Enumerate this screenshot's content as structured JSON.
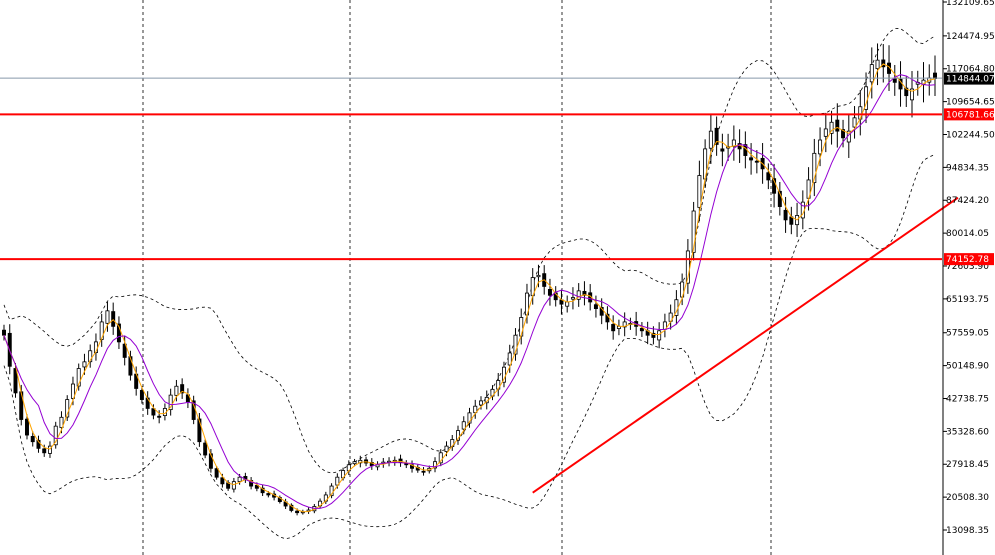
{
  "chart_data": {
    "type": "candlestick",
    "title": "",
    "xlabel": "",
    "ylabel": "",
    "ylim": [
      10000,
      135000
    ],
    "y_scale": "linear",
    "y_tick_labels": [
      "13098.35",
      "20508.30",
      "27918.45",
      "35328.60",
      "42738.75",
      "50148.90",
      "57559.05",
      "65193.75",
      "72603.90",
      "80014.05",
      "87424.20",
      "94834.35",
      "102244.50",
      "109654.65",
      "117064.80",
      "124474.95",
      "132109.65"
    ],
    "current_price": {
      "label": "114844.07",
      "value": 114844.07,
      "color": "#000000"
    },
    "horizontal_levels": [
      {
        "label": "106781.66",
        "value": 106781.66,
        "color": "#ff0000"
      },
      {
        "label": "74152.78",
        "value": 74152.78,
        "color": "#ff0000"
      }
    ],
    "trendline": {
      "color": "#ff0000",
      "from": [
        0,
        20000
      ],
      "to": [
        215,
        88000
      ]
    },
    "vertical_separators": 4,
    "grid": false,
    "series_colors": {
      "candles": "#000000",
      "fast_ma": "#ffa500",
      "slow_ma": "#9400d3",
      "bollinger": "#000000"
    },
    "closes": [
      57000,
      50000,
      44000,
      38000,
      34500,
      33000,
      31500,
      30500,
      32000,
      36500,
      38500,
      42500,
      46000,
      49500,
      51000,
      53500,
      55500,
      60000,
      62500,
      59000,
      55500,
      52000,
      48000,
      45000,
      42500,
      40500,
      39000,
      38500,
      40500,
      43500,
      45500,
      44000,
      42000,
      38000,
      33000,
      30000,
      27000,
      25000,
      23500,
      22500,
      24000,
      25000,
      24500,
      23000,
      22500,
      21500,
      21000,
      20500,
      19500,
      18500,
      17500,
      17000,
      17200,
      17600,
      18400,
      19600,
      21000,
      23000,
      25000,
      26500,
      27800,
      28500,
      28800,
      28200,
      27600,
      27800,
      28400,
      28600,
      28800,
      28300,
      27800,
      27000,
      26600,
      26300,
      27000,
      28500,
      30500,
      32000,
      33500,
      35500,
      37500,
      39500,
      41000,
      42200,
      43000,
      44800,
      46800,
      49800,
      53000,
      57000,
      61000,
      66500,
      70000,
      70500,
      68000,
      66000,
      65000,
      64000,
      64500,
      65500,
      67000,
      66000,
      64500,
      63000,
      61500,
      60000,
      58000,
      59000,
      60000,
      59500,
      59000,
      58000,
      57000,
      56500,
      58000,
      60000,
      62000,
      65000,
      69000,
      76000,
      85000,
      93000,
      99000,
      103000,
      100000,
      98500,
      99500,
      101000,
      99000,
      97500,
      96500,
      96000,
      94500,
      92000,
      89000,
      86000,
      83000,
      82000,
      84000,
      87000,
      92000,
      98000,
      101000,
      103500,
      105000,
      103000,
      101500,
      103000,
      106000,
      108500,
      113000,
      118000,
      119000,
      117500,
      116000,
      114000,
      112500,
      111000,
      112500,
      114000,
      114500,
      115000,
      114844
    ]
  }
}
